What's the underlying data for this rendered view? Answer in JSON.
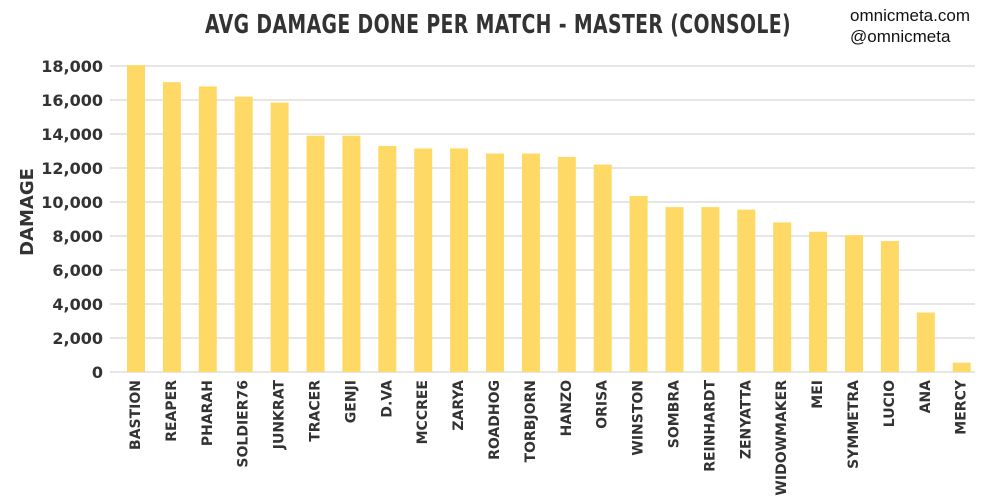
{
  "chart_data": {
    "type": "bar",
    "title": "AVG DAMAGE DONE PER MATCH - MASTER (CONSOLE)",
    "credits": [
      "omnicmeta.com",
      "@omnicmeta"
    ],
    "ylabel": "DAMAGE",
    "xlabel": "",
    "ylim": [
      0,
      18000
    ],
    "yticks": [
      0,
      2000,
      4000,
      6000,
      8000,
      10000,
      12000,
      14000,
      16000,
      18000
    ],
    "ytick_labels": [
      "0",
      "2,000",
      "4,000",
      "6,000",
      "8,000",
      "10,000",
      "12,000",
      "14,000",
      "16,000",
      "18,000"
    ],
    "grid": true,
    "bar_color": "#FFD966",
    "categories": [
      "BASTION",
      "REAPER",
      "PHARAH",
      "SOLDIER76",
      "JUNKRAT",
      "TRACER",
      "GENJI",
      "D.VA",
      "MCCREE",
      "ZARYA",
      "ROADHOG",
      "TORBJORN",
      "HANZO",
      "ORISA",
      "WINSTON",
      "SOMBRA",
      "REINHARDT",
      "ZENYATTA",
      "WIDOWMAKER",
      "MEI",
      "SYMMETRA",
      "LUCIO",
      "ANA",
      "MERCY"
    ],
    "values": [
      18050,
      17050,
      16800,
      16200,
      15850,
      13900,
      13900,
      13300,
      13150,
      13150,
      12850,
      12850,
      12650,
      12200,
      10350,
      9700,
      9700,
      9550,
      8800,
      8250,
      8050,
      7700,
      3500,
      550
    ]
  }
}
